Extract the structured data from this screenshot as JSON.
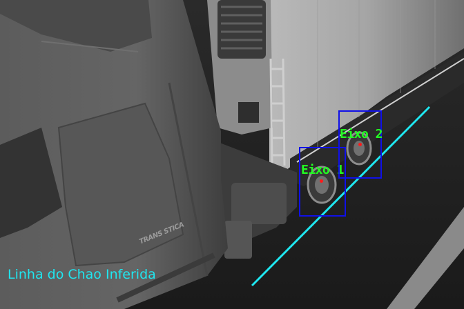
{
  "overlay": {
    "ground_line_label": "Linha do Chao Inferida",
    "ground_line_color": "#1fe7f0",
    "box_color": "#1010e8",
    "label_color": "#22ff22",
    "center_color": "#ff1a1a"
  },
  "axles": [
    {
      "label": "Eixo 1"
    },
    {
      "label": "Eixo 2"
    }
  ],
  "truck": {
    "badge_text": "TRANS STICA"
  }
}
